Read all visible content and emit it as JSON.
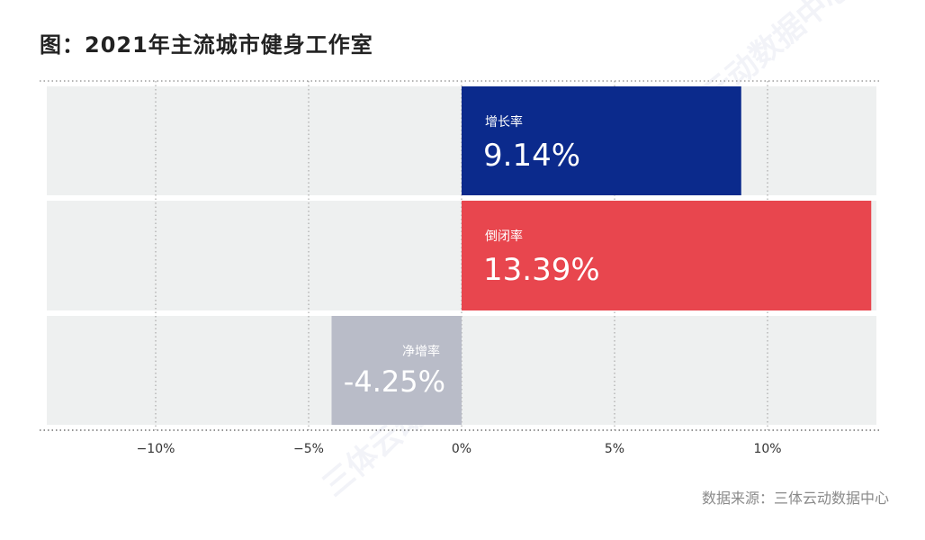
{
  "title": "图：2021年主流城市健身工作室",
  "source": "数据来源：三体云动数据中心",
  "watermark": "三体云动数据中心",
  "chart_data": {
    "type": "bar",
    "orientation": "horizontal",
    "categories": [
      "增长率",
      "倒闭率",
      "净增率"
    ],
    "values": [
      9.14,
      13.39,
      -4.25
    ],
    "value_labels": [
      "9.14%",
      "13.39%",
      "-4.25%"
    ],
    "colors": [
      "#0b2a8c",
      "#e8464e",
      "#b9bcc8"
    ],
    "xlim": [
      -14,
      13.5
    ],
    "xticks": [
      -10,
      -5,
      0,
      5,
      10
    ],
    "xtick_labels": [
      "−10%",
      "−5%",
      "0%",
      "5%",
      "10%"
    ],
    "grid": true,
    "legend": "none"
  }
}
